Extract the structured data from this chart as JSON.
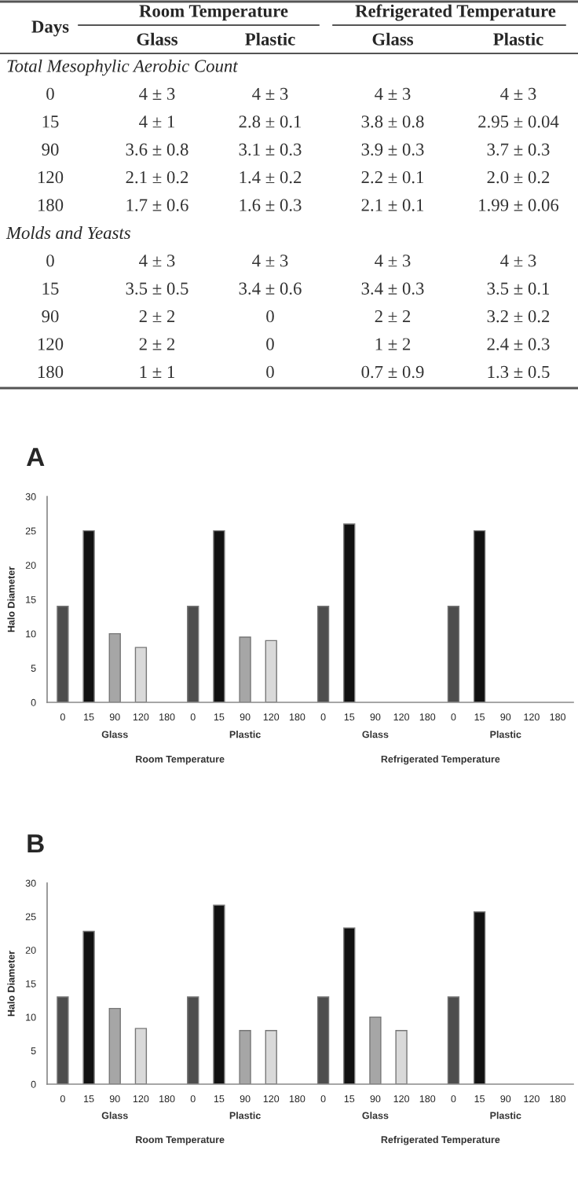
{
  "chart_data": [
    {
      "type": "other",
      "annotations": [
        "Days",
        "Room Temperature",
        "Refrigerated Temperature",
        "Glass",
        "Plastic",
        "Glass",
        "Plastic",
        "Total Mesophylic Aerobic Count",
        "0",
        "4 ± 3",
        "4 ± 3",
        "4 ± 3",
        "4 ± 3",
        "15",
        "4 ± 1",
        "2.8 ± 0.1",
        "3.8 ± 0.8",
        "2.95 ± 0.04",
        "90",
        "3.6 ± 0.8",
        "3.1 ± 0.3",
        "3.9 ± 0.3",
        "3.7 ± 0.3",
        "120",
        "2.1 ± 0.2",
        "1.4 ± 0.2",
        "2.2 ± 0.1",
        "2.0 ± 0.2",
        "180",
        "1.7 ± 0.6",
        "1.6 ± 0.3",
        "2.1 ± 0.1",
        "1.99 ± 0.06",
        "Molds and Yeasts",
        "0",
        "4 ± 3",
        "4 ± 3",
        "4 ± 3",
        "4 ± 3",
        "15",
        "3.5 ± 0.5",
        "3.4 ± 0.6",
        "3.4 ± 0.3",
        "3.5 ± 0.1",
        "90",
        "2 ± 2",
        "0",
        "2 ± 2",
        "3.2 ± 0.2",
        "120",
        "2 ± 2",
        "0",
        "1 ± 2",
        "2.4 ± 0.3",
        "180",
        "1 ± 1",
        "0",
        "0.7 ± 0.9",
        "1.3 ± 0.5"
      ]
    },
    {
      "type": "bar",
      "title": "A",
      "ylabel": "Halo Diameter",
      "ylim": [
        0,
        30
      ],
      "yticks": [
        0,
        5,
        10,
        15,
        20,
        25,
        30
      ],
      "grid": false,
      "categories": [
        "0",
        "15",
        "90",
        "120",
        "180",
        "0",
        "15",
        "90",
        "120",
        "180",
        "0",
        "15",
        "90",
        "120",
        "180",
        "0",
        "15",
        "90",
        "120",
        "180"
      ],
      "values": [
        14,
        25,
        10,
        8,
        null,
        14,
        25,
        9.5,
        9,
        null,
        14,
        26,
        null,
        null,
        null,
        14,
        25,
        null,
        null,
        null
      ],
      "colors": [
        "#4d4d4d",
        "#111111",
        "#a6a6a6",
        "#d9d9d9",
        "#ffffff",
        "#4d4d4d",
        "#111111",
        "#a6a6a6",
        "#d9d9d9",
        "#ffffff",
        "#4d4d4d",
        "#111111",
        "#a6a6a6",
        "#d9d9d9",
        "#ffffff",
        "#4d4d4d",
        "#111111",
        "#a6a6a6",
        "#d9d9d9",
        "#ffffff"
      ],
      "annotations": [
        "Glass",
        "Plastic",
        "Glass",
        "Plastic",
        "Room Temperature",
        "Refrigerated Temperature"
      ]
    },
    {
      "type": "bar",
      "title": "B",
      "ylabel": "Halo Diameter",
      "ylim": [
        0,
        30
      ],
      "yticks": [
        0,
        5,
        10,
        15,
        20,
        25,
        30
      ],
      "grid": false,
      "categories": [
        "0",
        "15",
        "90",
        "120",
        "180",
        "0",
        "15",
        "90",
        "120",
        "180",
        "0",
        "15",
        "90",
        "120",
        "180",
        "0",
        "15",
        "90",
        "120",
        "180"
      ],
      "values": [
        13,
        22.8,
        11.3,
        8.3,
        null,
        13,
        26.7,
        8,
        8,
        null,
        13,
        23.3,
        10,
        8,
        null,
        13,
        25.7,
        null,
        null,
        null
      ],
      "colors": [
        "#4d4d4d",
        "#111111",
        "#a6a6a6",
        "#d9d9d9",
        "#ffffff",
        "#4d4d4d",
        "#111111",
        "#a6a6a6",
        "#d9d9d9",
        "#ffffff",
        "#4d4d4d",
        "#111111",
        "#a6a6a6",
        "#d9d9d9",
        "#ffffff",
        "#4d4d4d",
        "#111111",
        "#a6a6a6",
        "#d9d9d9",
        "#ffffff"
      ],
      "annotations": [
        "Glass",
        "Plastic",
        "Glass",
        "Plastic",
        "Room Temperature",
        "Refrigerated Temperature"
      ]
    }
  ]
}
